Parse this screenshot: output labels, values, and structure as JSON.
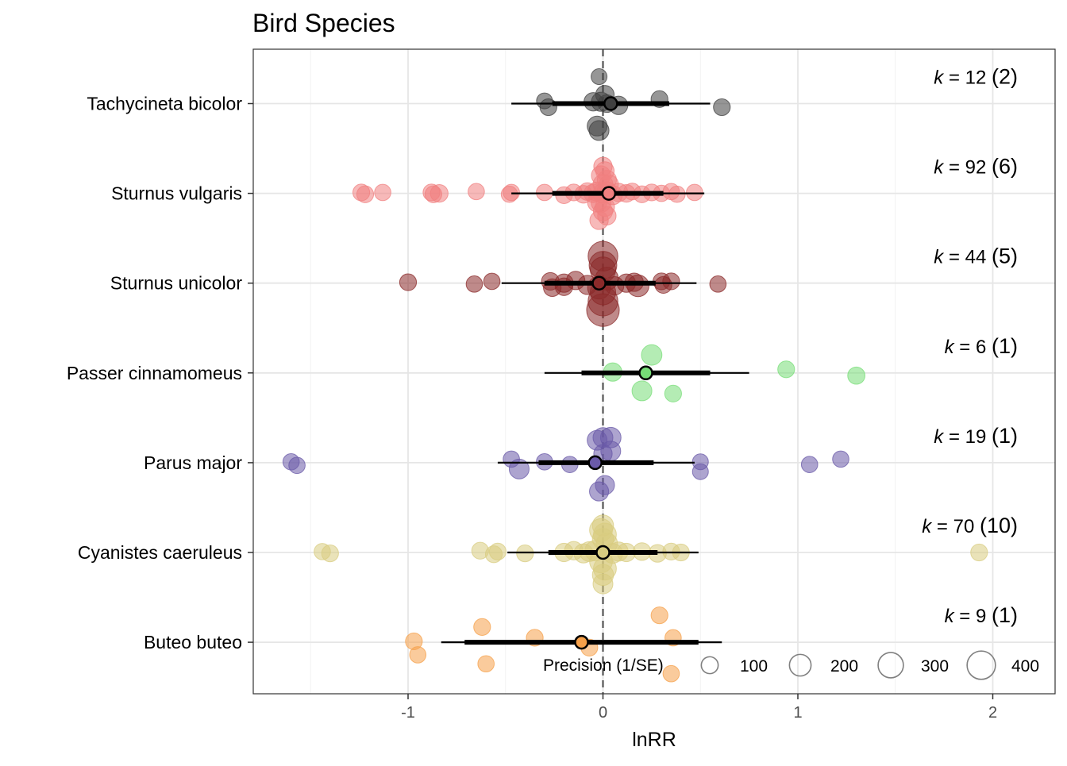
{
  "chart_data": {
    "type": "scatter",
    "subtype": "orchard plot",
    "title": "Bird Species",
    "xlabel": "lnRR",
    "ylabel": "",
    "xlim": [
      -1.8,
      2.3
    ],
    "xticks": [
      -1,
      0,
      1,
      2
    ],
    "xtick_labels": [
      "-1",
      "0",
      "1",
      "2"
    ],
    "grid": true,
    "reference_line": 0,
    "legend": {
      "title": "Precision (1/SE)",
      "placement": "bottom-right",
      "entries": [
        {
          "label": "100",
          "value": 100
        },
        {
          "label": "200",
          "value": 200
        },
        {
          "label": "300",
          "value": 300
        },
        {
          "label": "400",
          "value": 400
        }
      ]
    },
    "groups": [
      {
        "name": "Tachycineta bicolor",
        "color": "#404040",
        "estimate": 0.04,
        "ci": [
          -0.26,
          0.34
        ],
        "pi": [
          -0.47,
          0.55
        ],
        "k_prefix": "k",
        "k_value": "= 12",
        "k_studies": "(2)",
        "points": [
          [
            -0.02,
            0.3,
            50
          ],
          [
            -0.3,
            0.03,
            50
          ],
          [
            -0.28,
            -0.04,
            60
          ],
          [
            -0.05,
            0.02,
            80
          ],
          [
            0.08,
            -0.02,
            80
          ],
          [
            0.29,
            0.05,
            60
          ],
          [
            0.61,
            -0.04,
            60
          ],
          [
            -0.03,
            -0.25,
            100
          ],
          [
            -0.02,
            -0.3,
            100
          ],
          [
            0.01,
            0.1,
            80
          ],
          [
            0.02,
            0.0,
            70
          ],
          [
            -0.01,
            0.02,
            90
          ]
        ]
      },
      {
        "name": "Sturnus vulgaris",
        "color": "#f08080",
        "estimate": 0.03,
        "ci": [
          -0.26,
          0.31
        ],
        "pi": [
          -0.47,
          0.52
        ],
        "k_prefix": "k",
        "k_value": "= 92",
        "k_studies": "(6)",
        "points": [
          [
            -1.24,
            0.01,
            60
          ],
          [
            -1.22,
            -0.01,
            60
          ],
          [
            -1.13,
            0.01,
            55
          ],
          [
            -0.88,
            0.01,
            60
          ],
          [
            -0.87,
            -0.01,
            60
          ],
          [
            -0.84,
            0.0,
            70
          ],
          [
            -0.65,
            0.02,
            55
          ],
          [
            -0.47,
            0.01,
            55
          ],
          [
            -0.48,
            -0.01,
            55
          ],
          [
            -0.3,
            0.01,
            55
          ],
          [
            -0.2,
            -0.02,
            60
          ],
          [
            -0.15,
            0.01,
            60
          ],
          [
            -0.1,
            -0.01,
            70
          ],
          [
            -0.08,
            0.02,
            70
          ],
          [
            -0.05,
            0.0,
            80
          ],
          [
            -0.03,
            0.02,
            90
          ],
          [
            0.0,
            0.0,
            100
          ],
          [
            0.02,
            0.02,
            100
          ],
          [
            0.05,
            -0.02,
            90
          ],
          [
            0.08,
            0.01,
            80
          ],
          [
            0.12,
            0.0,
            70
          ],
          [
            0.15,
            0.02,
            60
          ],
          [
            0.2,
            -0.01,
            60
          ],
          [
            0.25,
            0.01,
            60
          ],
          [
            0.3,
            0.0,
            55
          ],
          [
            0.35,
            0.02,
            55
          ],
          [
            0.38,
            -0.01,
            55
          ],
          [
            0.47,
            0.01,
            55
          ],
          [
            0.0,
            0.3,
            80
          ],
          [
            0.01,
            0.25,
            80
          ],
          [
            -0.01,
            0.2,
            90
          ],
          [
            0.02,
            0.15,
            90
          ],
          [
            0.0,
            0.1,
            100
          ],
          [
            -0.01,
            -0.1,
            100
          ],
          [
            0.01,
            -0.15,
            90
          ],
          [
            0.0,
            -0.2,
            90
          ],
          [
            0.02,
            -0.25,
            80
          ],
          [
            -0.02,
            -0.3,
            80
          ],
          [
            0.03,
            0.1,
            90
          ],
          [
            -0.03,
            -0.1,
            90
          ]
        ]
      },
      {
        "name": "Sturnus unicolor",
        "color": "#8b2a2a",
        "estimate": -0.02,
        "ci": [
          -0.3,
          0.27
        ],
        "pi": [
          -0.52,
          0.48
        ],
        "k_prefix": "k",
        "k_value": "= 44",
        "k_studies": "(5)",
        "points": [
          [
            -1.0,
            0.01,
            60
          ],
          [
            -0.66,
            -0.01,
            55
          ],
          [
            -0.57,
            0.02,
            55
          ],
          [
            -0.27,
            0.02,
            70
          ],
          [
            -0.26,
            -0.05,
            70
          ],
          [
            -0.2,
            0.0,
            80
          ],
          [
            -0.2,
            -0.04,
            70
          ],
          [
            -0.14,
            0.03,
            80
          ],
          [
            -0.08,
            -0.02,
            90
          ],
          [
            0.06,
            -0.03,
            80
          ],
          [
            0.12,
            0.0,
            80
          ],
          [
            0.16,
            0.01,
            80
          ],
          [
            0.18,
            -0.03,
            130
          ],
          [
            0.3,
            0.02,
            60
          ],
          [
            0.31,
            -0.02,
            60
          ],
          [
            0.35,
            0.02,
            60
          ],
          [
            0.59,
            -0.01,
            55
          ],
          [
            0.0,
            0.3,
            300
          ],
          [
            0.0,
            0.2,
            250
          ],
          [
            0.0,
            0.15,
            200
          ],
          [
            0.0,
            -0.2,
            300
          ],
          [
            0.0,
            -0.3,
            380
          ],
          [
            0.0,
            -0.1,
            200
          ],
          [
            0.02,
            0.05,
            150
          ],
          [
            -0.02,
            -0.05,
            150
          ]
        ]
      },
      {
        "name": "Passer cinnamomeus",
        "color": "#77dd77",
        "estimate": 0.22,
        "ci": [
          -0.11,
          0.55
        ],
        "pi": [
          -0.3,
          0.75
        ],
        "k_prefix": "k",
        "k_value": "= 6",
        "k_studies": "(1)",
        "points": [
          [
            0.25,
            0.2,
            110
          ],
          [
            0.05,
            0.01,
            80
          ],
          [
            0.2,
            -0.2,
            100
          ],
          [
            0.36,
            -0.23,
            60
          ],
          [
            0.94,
            0.04,
            60
          ],
          [
            1.3,
            -0.03,
            65
          ]
        ]
      },
      {
        "name": "Parus major",
        "color": "#6a5aa8",
        "estimate": -0.04,
        "ci": [
          -0.33,
          0.26
        ],
        "pi": [
          -0.54,
          0.47
        ],
        "k_prefix": "k",
        "k_value": "= 19",
        "k_studies": "(1)",
        "points": [
          [
            -1.6,
            0.01,
            55
          ],
          [
            -1.57,
            -0.03,
            55
          ],
          [
            -0.47,
            0.04,
            55
          ],
          [
            -0.43,
            -0.07,
            100
          ],
          [
            -0.3,
            0.01,
            55
          ],
          [
            -0.17,
            -0.02,
            55
          ],
          [
            -0.03,
            0.25,
            100
          ],
          [
            0.0,
            0.28,
            100
          ],
          [
            0.04,
            0.28,
            110
          ],
          [
            0.04,
            0.13,
            100
          ],
          [
            0.0,
            0.1,
            80
          ],
          [
            0.01,
            -0.25,
            90
          ],
          [
            -0.02,
            -0.32,
            90
          ],
          [
            0.5,
            0.01,
            50
          ],
          [
            0.5,
            -0.1,
            50
          ],
          [
            1.06,
            -0.02,
            55
          ],
          [
            1.22,
            0.04,
            55
          ]
        ]
      },
      {
        "name": "Cyanistes caeruleus",
        "color": "#d8cc80",
        "estimate": 0.0,
        "ci": [
          -0.28,
          0.28
        ],
        "pi": [
          -0.49,
          0.49
        ],
        "k_prefix": "k",
        "k_value": "= 70",
        "k_studies": "(10)",
        "points": [
          [
            -1.44,
            0.01,
            55
          ],
          [
            -1.4,
            -0.01,
            60
          ],
          [
            -0.63,
            0.02,
            60
          ],
          [
            -0.56,
            -0.02,
            60
          ],
          [
            -0.54,
            0.01,
            60
          ],
          [
            -0.4,
            -0.01,
            60
          ],
          [
            -0.2,
            0.0,
            80
          ],
          [
            -0.15,
            0.02,
            80
          ],
          [
            -0.1,
            -0.01,
            90
          ],
          [
            -0.07,
            0.01,
            100
          ],
          [
            -0.04,
            0.02,
            110
          ],
          [
            0.05,
            -0.01,
            100
          ],
          [
            0.08,
            0.01,
            90
          ],
          [
            0.12,
            0.0,
            80
          ],
          [
            0.2,
            0.01,
            70
          ],
          [
            0.28,
            -0.01,
            70
          ],
          [
            0.35,
            0.01,
            60
          ],
          [
            0.4,
            0.0,
            60
          ],
          [
            1.93,
            0.0,
            60
          ],
          [
            0.0,
            0.3,
            120
          ],
          [
            -0.01,
            0.25,
            150
          ],
          [
            0.01,
            0.2,
            150
          ],
          [
            0.0,
            0.15,
            120
          ],
          [
            -0.01,
            -0.1,
            150
          ],
          [
            0.01,
            -0.18,
            150
          ],
          [
            0.0,
            -0.25,
            120
          ],
          [
            0.0,
            -0.35,
            100
          ],
          [
            0.02,
            0.1,
            120
          ]
        ]
      },
      {
        "name": "Buteo buteo",
        "color": "#f5a04a",
        "estimate": -0.11,
        "ci": [
          -0.71,
          0.49
        ],
        "pi": [
          -0.83,
          0.61
        ],
        "k_prefix": "k",
        "k_value": "= 9",
        "k_studies": "(1)",
        "points": [
          [
            -0.97,
            0.01,
            60
          ],
          [
            -0.95,
            -0.14,
            55
          ],
          [
            -0.62,
            0.17,
            60
          ],
          [
            -0.6,
            -0.24,
            55
          ],
          [
            -0.35,
            0.05,
            60
          ],
          [
            -0.07,
            -0.06,
            60
          ],
          [
            0.29,
            0.3,
            60
          ],
          [
            0.36,
            0.05,
            55
          ],
          [
            0.35,
            -0.35,
            55
          ]
        ]
      }
    ]
  }
}
